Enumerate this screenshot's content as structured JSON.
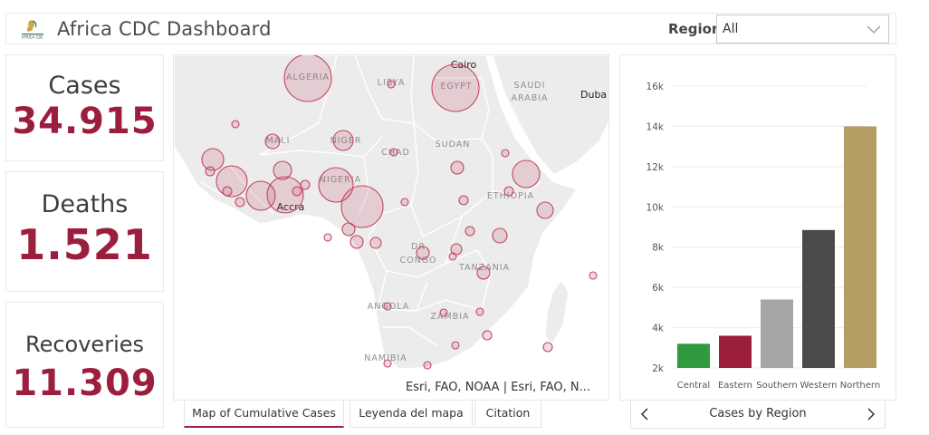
{
  "header": {
    "title": "Africa CDC Dashboard",
    "logo_text": "AFRICA CDC",
    "region_label": "Region",
    "region_value": "All"
  },
  "kpis": {
    "cases": {
      "label": "Cases",
      "value": "34.915"
    },
    "deaths": {
      "label": "Deaths",
      "value": "1.521"
    },
    "recoveries": {
      "label": "Recoveries",
      "value": "11.309"
    }
  },
  "map": {
    "labels": {
      "algeria": "ALGERIA",
      "libya": "LIBYA",
      "egypt": "EGYPT",
      "cairo": "Cairo",
      "saudi": "SAUDI",
      "arabia": "ARABIA",
      "dubai": "Duba",
      "mali": "MALI",
      "niger": "NIGER",
      "chad": "CHAD",
      "sudan": "SUDAN",
      "nigeria": "NIGERIA",
      "ethiopia": "ETHIOPIA",
      "accra": "Accra",
      "dr": "DR",
      "congo": "CONGO",
      "tanzania": "TANZANIA",
      "angola": "ANGOLA",
      "zambia": "ZAMBIA",
      "namibia": "NAMIBIA"
    },
    "attribution": "Esri, FAO, NOAA | Esri, FAO, N...",
    "marker_color": "#c4455f"
  },
  "tabs": [
    {
      "label": "Map of Cumulative Cases",
      "active": true
    },
    {
      "label": "Leyenda del mapa",
      "active": false
    },
    {
      "label": "Citation",
      "active": false
    }
  ],
  "chart_data": {
    "type": "bar",
    "categories": [
      "Central",
      "Eastern",
      "Southern",
      "Western",
      "Northern"
    ],
    "values": [
      3200,
      3600,
      5400,
      8850,
      14000
    ],
    "colors": [
      "#2f9a3f",
      "#9c1e3d",
      "#a6a6a6",
      "#4a4a4a",
      "#b49e64"
    ],
    "yticks": [
      "2k",
      "4k",
      "6k",
      "8k",
      "10k",
      "12k",
      "14k",
      "16k"
    ],
    "ylim": [
      2000,
      16000
    ],
    "grid": true
  },
  "chart_nav": {
    "label": "Cases by Region"
  },
  "colors": {
    "accent": "#9c1e3d",
    "border": "#e8e8e8"
  }
}
